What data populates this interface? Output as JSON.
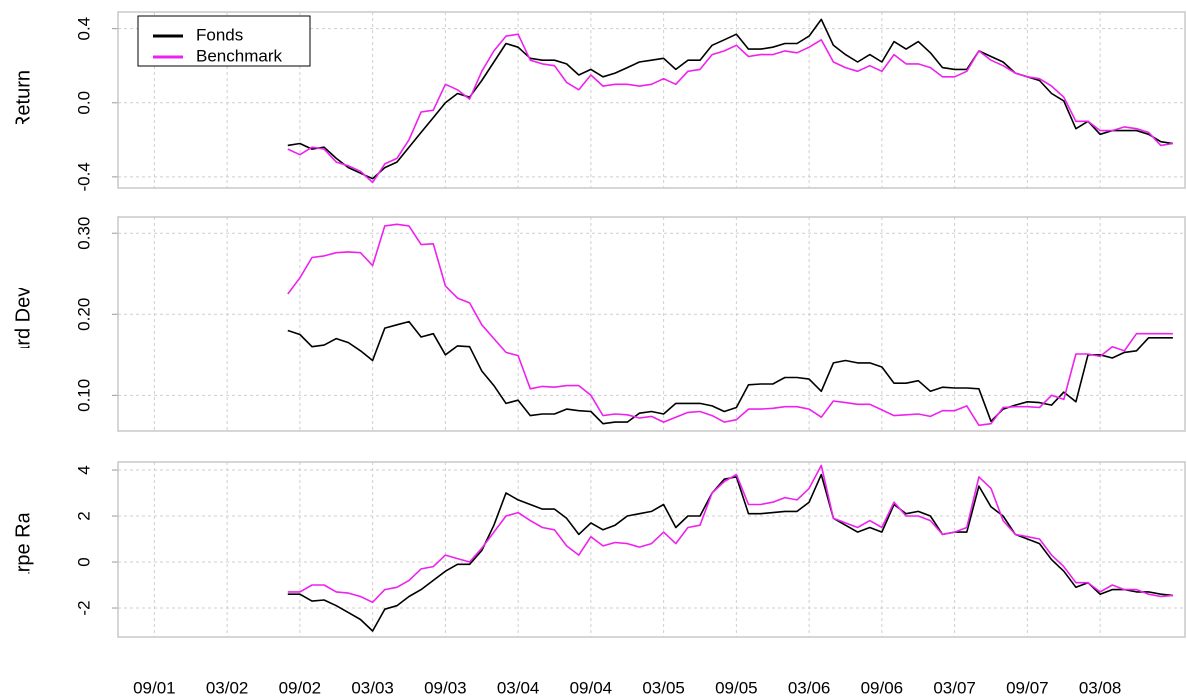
{
  "chart_data": [
    {
      "type": "line",
      "y_label": "Return",
      "legend": "top-left",
      "x": [
        "08/02",
        "09/02",
        "10/02",
        "11/02",
        "12/02",
        "01/03",
        "02/03",
        "03/03",
        "04/03",
        "05/03",
        "06/03",
        "07/03",
        "08/03",
        "09/03",
        "10/03",
        "11/03",
        "12/03",
        "01/04",
        "02/04",
        "03/04",
        "04/04",
        "05/04",
        "06/04",
        "07/04",
        "08/04",
        "09/04",
        "10/04",
        "11/04",
        "12/04",
        "01/05",
        "02/05",
        "03/05",
        "04/05",
        "05/05",
        "06/05",
        "07/05",
        "08/05",
        "09/05",
        "10/05",
        "11/05",
        "12/05",
        "01/06",
        "02/06",
        "03/06",
        "04/06",
        "05/06",
        "06/06",
        "07/06",
        "08/06",
        "09/06",
        "10/06",
        "11/06",
        "12/06",
        "01/07",
        "02/07",
        "03/07",
        "04/07",
        "05/07",
        "06/07",
        "07/07",
        "08/07",
        "09/07",
        "10/07",
        "11/07",
        "12/07",
        "01/08",
        "02/08",
        "03/08",
        "04/08",
        "05/08",
        "06/08",
        "07/08",
        "08/08",
        "09/08"
      ],
      "series": [
        {
          "name": "Fonds",
          "color": "#000000",
          "values": [
            -0.23,
            -0.22,
            -0.25,
            -0.24,
            -0.3,
            -0.35,
            -0.38,
            -0.41,
            -0.35,
            -0.32,
            -0.24,
            -0.16,
            -0.08,
            0.0,
            0.05,
            0.03,
            0.12,
            0.22,
            0.32,
            0.3,
            0.24,
            0.23,
            0.23,
            0.21,
            0.15,
            0.18,
            0.14,
            0.16,
            0.19,
            0.22,
            0.23,
            0.24,
            0.18,
            0.23,
            0.23,
            0.31,
            0.34,
            0.37,
            0.29,
            0.29,
            0.3,
            0.32,
            0.32,
            0.36,
            0.45,
            0.31,
            0.26,
            0.22,
            0.26,
            0.22,
            0.33,
            0.29,
            0.33,
            0.27,
            0.19,
            0.18,
            0.18,
            0.28,
            0.25,
            0.22,
            0.16,
            0.14,
            0.12,
            0.05,
            0.01,
            -0.14,
            -0.1,
            -0.17,
            -0.15,
            -0.15,
            -0.15,
            -0.17,
            -0.21,
            -0.22
          ]
        },
        {
          "name": "Benchmark",
          "color": "#ee22ee",
          "values": [
            -0.25,
            -0.28,
            -0.24,
            -0.25,
            -0.32,
            -0.34,
            -0.37,
            -0.43,
            -0.33,
            -0.3,
            -0.2,
            -0.05,
            -0.04,
            0.1,
            0.07,
            0.02,
            0.17,
            0.28,
            0.36,
            0.37,
            0.23,
            0.21,
            0.2,
            0.11,
            0.07,
            0.15,
            0.09,
            0.1,
            0.1,
            0.09,
            0.1,
            0.13,
            0.1,
            0.17,
            0.18,
            0.26,
            0.28,
            0.31,
            0.25,
            0.26,
            0.26,
            0.28,
            0.27,
            0.3,
            0.34,
            0.22,
            0.19,
            0.17,
            0.2,
            0.17,
            0.26,
            0.21,
            0.21,
            0.19,
            0.14,
            0.14,
            0.17,
            0.28,
            0.23,
            0.2,
            0.16,
            0.14,
            0.13,
            0.09,
            0.03,
            -0.1,
            -0.1,
            -0.15,
            -0.15,
            -0.13,
            -0.14,
            -0.16,
            -0.23,
            -0.22
          ]
        }
      ],
      "xlim": [
        "06/01",
        "10/08"
      ],
      "ylim": [
        -0.46,
        0.49
      ],
      "yticks": [
        -0.4,
        {
          "value": 0,
          "label": "0.0"
        },
        0.4
      ],
      "grid": true
    },
    {
      "type": "line",
      "y_label": "Standard Deviation",
      "x": [
        "08/02",
        "09/02",
        "10/02",
        "11/02",
        "12/02",
        "01/03",
        "02/03",
        "03/03",
        "04/03",
        "05/03",
        "06/03",
        "07/03",
        "08/03",
        "09/03",
        "10/03",
        "11/03",
        "12/03",
        "01/04",
        "02/04",
        "03/04",
        "04/04",
        "05/04",
        "06/04",
        "07/04",
        "08/04",
        "09/04",
        "10/04",
        "11/04",
        "12/04",
        "01/05",
        "02/05",
        "03/05",
        "04/05",
        "05/05",
        "06/05",
        "07/05",
        "08/05",
        "09/05",
        "10/05",
        "11/05",
        "12/05",
        "01/06",
        "02/06",
        "03/06",
        "04/06",
        "05/06",
        "06/06",
        "07/06",
        "08/06",
        "09/06",
        "10/06",
        "11/06",
        "12/06",
        "01/07",
        "02/07",
        "03/07",
        "04/07",
        "05/07",
        "06/07",
        "07/07",
        "08/07",
        "09/07",
        "10/07",
        "11/07",
        "12/07",
        "01/08",
        "02/08",
        "03/08",
        "04/08",
        "05/08",
        "06/08",
        "07/08",
        "08/08",
        "09/08"
      ],
      "series": [
        {
          "name": "Fonds",
          "color": "#000000",
          "values": [
            0.18,
            0.175,
            0.16,
            0.162,
            0.17,
            0.165,
            0.155,
            0.143,
            0.183,
            0.187,
            0.191,
            0.172,
            0.176,
            0.15,
            0.161,
            0.16,
            0.13,
            0.112,
            0.09,
            0.094,
            0.075,
            0.077,
            0.077,
            0.083,
            0.081,
            0.08,
            0.065,
            0.067,
            0.067,
            0.078,
            0.08,
            0.077,
            0.09,
            0.09,
            0.09,
            0.087,
            0.08,
            0.085,
            0.113,
            0.114,
            0.114,
            0.122,
            0.122,
            0.12,
            0.105,
            0.14,
            0.143,
            0.14,
            0.14,
            0.135,
            0.115,
            0.115,
            0.118,
            0.105,
            0.11,
            0.109,
            0.109,
            0.108,
            0.068,
            0.083,
            0.088,
            0.092,
            0.091,
            0.088,
            0.104,
            0.092,
            0.15,
            0.15,
            0.146,
            0.153,
            0.155,
            0.171,
            0.171,
            0.171
          ]
        },
        {
          "name": "Benchmark",
          "color": "#ee22ee",
          "values": [
            0.225,
            0.245,
            0.27,
            0.272,
            0.276,
            0.277,
            0.276,
            0.26,
            0.309,
            0.311,
            0.309,
            0.286,
            0.287,
            0.235,
            0.22,
            0.214,
            0.187,
            0.17,
            0.153,
            0.149,
            0.108,
            0.111,
            0.11,
            0.112,
            0.112,
            0.1,
            0.075,
            0.077,
            0.076,
            0.072,
            0.074,
            0.067,
            0.073,
            0.079,
            0.08,
            0.075,
            0.067,
            0.07,
            0.083,
            0.083,
            0.084,
            0.086,
            0.086,
            0.083,
            0.073,
            0.093,
            0.091,
            0.089,
            0.089,
            0.082,
            0.075,
            0.076,
            0.077,
            0.074,
            0.081,
            0.081,
            0.087,
            0.063,
            0.065,
            0.085,
            0.086,
            0.086,
            0.085,
            0.1,
            0.095,
            0.151,
            0.151,
            0.148,
            0.16,
            0.155,
            0.176,
            0.176,
            0.176,
            0.176
          ]
        }
      ],
      "xlim": [
        "06/01",
        "10/08"
      ],
      "ylim": [
        0.056,
        0.32
      ],
      "yticks": [
        {
          "value": 0.1,
          "label": "0.10"
        },
        {
          "value": 0.2,
          "label": "0.20"
        },
        {
          "value": 0.3,
          "label": "0.30"
        }
      ],
      "grid": true
    },
    {
      "type": "line",
      "y_label": "Sharpe Ratio",
      "x": [
        "08/02",
        "09/02",
        "10/02",
        "11/02",
        "12/02",
        "01/03",
        "02/03",
        "03/03",
        "04/03",
        "05/03",
        "06/03",
        "07/03",
        "08/03",
        "09/03",
        "10/03",
        "11/03",
        "12/03",
        "01/04",
        "02/04",
        "03/04",
        "04/04",
        "05/04",
        "06/04",
        "07/04",
        "08/04",
        "09/04",
        "10/04",
        "11/04",
        "12/04",
        "01/05",
        "02/05",
        "03/05",
        "04/05",
        "05/05",
        "06/05",
        "07/05",
        "08/05",
        "09/05",
        "10/05",
        "11/05",
        "12/05",
        "01/06",
        "02/06",
        "03/06",
        "04/06",
        "05/06",
        "06/06",
        "07/06",
        "08/06",
        "09/06",
        "10/06",
        "11/06",
        "12/06",
        "01/07",
        "02/07",
        "03/07",
        "04/07",
        "05/07",
        "06/07",
        "07/07",
        "08/07",
        "09/07",
        "10/07",
        "11/07",
        "12/07",
        "01/08",
        "02/08",
        "03/08",
        "04/08",
        "05/08",
        "06/08",
        "07/08",
        "08/08",
        "09/08"
      ],
      "series": [
        {
          "name": "Fonds",
          "color": "#000000",
          "values": [
            -1.4,
            -1.4,
            -1.7,
            -1.65,
            -1.9,
            -2.2,
            -2.5,
            -3.0,
            -2.05,
            -1.9,
            -1.5,
            -1.2,
            -0.8,
            -0.4,
            -0.1,
            -0.1,
            0.5,
            1.6,
            3.0,
            2.7,
            2.5,
            2.3,
            2.3,
            1.9,
            1.2,
            1.7,
            1.4,
            1.6,
            2.0,
            2.1,
            2.2,
            2.5,
            1.5,
            2.0,
            2.0,
            3.0,
            3.6,
            3.7,
            2.1,
            2.1,
            2.15,
            2.2,
            2.2,
            2.6,
            3.8,
            1.9,
            1.6,
            1.3,
            1.5,
            1.3,
            2.5,
            2.1,
            2.2,
            2.0,
            1.2,
            1.3,
            1.3,
            3.3,
            2.4,
            2.0,
            1.2,
            1.0,
            0.8,
            0.1,
            -0.4,
            -1.1,
            -0.9,
            -1.4,
            -1.2,
            -1.2,
            -1.3,
            -1.3,
            -1.4,
            -1.45
          ]
        },
        {
          "name": "Benchmark",
          "color": "#ee22ee",
          "values": [
            -1.3,
            -1.3,
            -1.0,
            -1.0,
            -1.3,
            -1.35,
            -1.5,
            -1.75,
            -1.2,
            -1.1,
            -0.8,
            -0.3,
            -0.2,
            0.3,
            0.15,
            0.0,
            0.6,
            1.3,
            2.0,
            2.15,
            1.8,
            1.5,
            1.4,
            0.7,
            0.3,
            1.1,
            0.7,
            0.85,
            0.8,
            0.65,
            0.8,
            1.3,
            0.8,
            1.5,
            1.6,
            3.0,
            3.5,
            3.8,
            2.5,
            2.5,
            2.6,
            2.8,
            2.7,
            3.2,
            4.2,
            1.9,
            1.7,
            1.5,
            1.8,
            1.5,
            2.6,
            2.0,
            2.0,
            1.8,
            1.2,
            1.3,
            1.5,
            3.7,
            3.2,
            1.8,
            1.2,
            1.1,
            1.0,
            0.3,
            -0.2,
            -0.9,
            -0.9,
            -1.3,
            -1.0,
            -1.2,
            -1.2,
            -1.4,
            -1.5,
            -1.45
          ]
        }
      ],
      "xlim": [
        "06/01",
        "10/08"
      ],
      "xticks": [
        "09/01",
        "03/02",
        "09/02",
        "03/03",
        "09/03",
        "03/04",
        "09/04",
        "03/05",
        "09/05",
        "03/06",
        "09/06",
        "03/07",
        "09/07",
        "03/08"
      ],
      "ylim": [
        -3.26,
        4.35
      ],
      "yticks": [
        -2,
        0,
        2,
        4
      ],
      "grid": true
    }
  ]
}
